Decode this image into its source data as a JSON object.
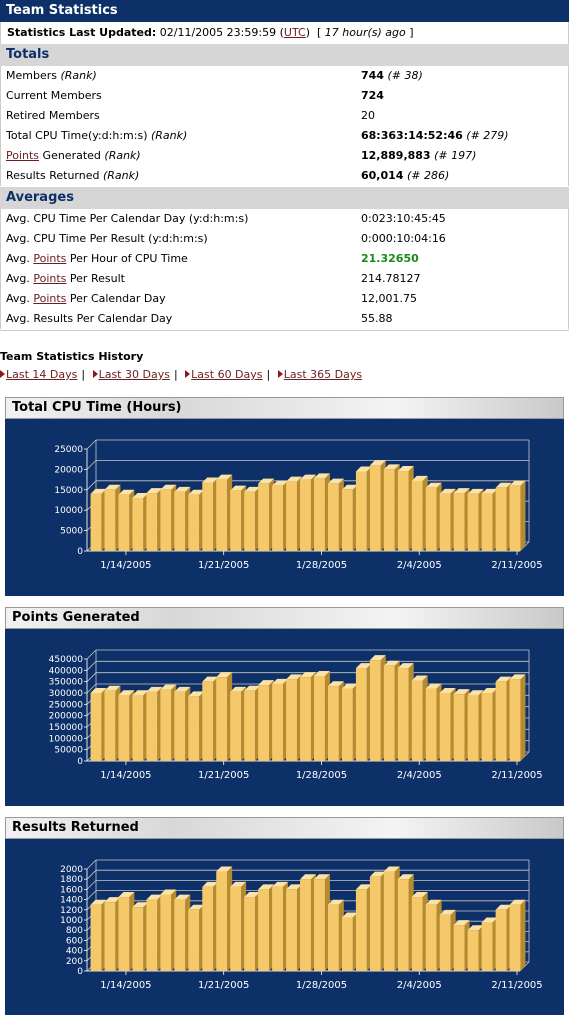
{
  "header": {
    "title": "Team Statistics"
  },
  "updated": {
    "label": "Statistics Last Updated:",
    "datetime": "02/11/2005 23:59:59",
    "tz_link": "UTC",
    "ago": "17 hour(s) ago"
  },
  "totals": {
    "heading": "Totals",
    "rows": [
      {
        "label": "Members",
        "rank_label": "(Rank)",
        "value": "744",
        "rank": "(# 38)"
      },
      {
        "label": "Current Members",
        "value": "724"
      },
      {
        "label": "Retired Members",
        "value": "20"
      },
      {
        "label": "Total CPU Time(y:d:h:m:s)",
        "rank_label": "(Rank)",
        "value": "68:363:14:52:46",
        "rank": "(# 279)"
      },
      {
        "link": "Points",
        "label": " Generated",
        "rank_label": "(Rank)",
        "value": "12,889,883",
        "rank": "(# 197)"
      },
      {
        "label": "Results Returned",
        "rank_label": "(Rank)",
        "value": "60,014",
        "rank": "(# 286)"
      }
    ]
  },
  "averages": {
    "heading": "Averages",
    "rows": [
      {
        "label": "Avg. CPU Time Per Calendar Day (y:d:h:m:s)",
        "value": "0:023:10:45:45"
      },
      {
        "label": "Avg. CPU Time Per Result (y:d:h:m:s)",
        "value": "0:000:10:04:16"
      },
      {
        "pre": "Avg. ",
        "link": "Points",
        "label": " Per Hour of CPU Time",
        "value": "21.32650"
      },
      {
        "pre": "Avg. ",
        "link": "Points",
        "label": " Per Result",
        "value": "214.78127"
      },
      {
        "pre": "Avg. ",
        "link": "Points",
        "label": " Per Calendar Day",
        "value": "12,001.75"
      },
      {
        "label": "Avg. Results Per Calendar Day",
        "value": "55.88"
      }
    ]
  },
  "history": {
    "title": "Team Statistics History",
    "links": [
      "Last 14 Days",
      "Last 30 Days",
      "Last 60 Days",
      "Last 365 Days"
    ]
  },
  "colors": {
    "navy": "#0d3068",
    "bar_face": "#f5c96a",
    "bar_top": "#fbe3a6",
    "bar_side": "#b88a2e",
    "link": "#6b1f1f",
    "green": "#1a8a1a"
  },
  "chart_data": [
    {
      "type": "bar",
      "title": "Total CPU Time (Hours)",
      "xlabels": [
        "1/14/2005",
        "1/21/2005",
        "1/28/2005",
        "2/4/2005",
        "2/11/2005"
      ],
      "yticks": [
        0,
        5000,
        10000,
        15000,
        20000,
        25000
      ],
      "ylim": [
        0,
        25000
      ],
      "values": [
        14000,
        15000,
        13800,
        13000,
        14200,
        15000,
        14500,
        13800,
        16800,
        17500,
        14800,
        14500,
        16500,
        16000,
        17000,
        17500,
        17800,
        16500,
        15000,
        19500,
        21000,
        20000,
        19600,
        17200,
        15500,
        14000,
        14200,
        14000,
        14000,
        15500,
        16000
      ]
    },
    {
      "type": "bar",
      "title": "Points Generated",
      "xlabels": [
        "1/14/2005",
        "1/21/2005",
        "1/28/2005",
        "2/4/2005",
        "2/11/2005"
      ],
      "yticks": [
        0,
        50000,
        100000,
        150000,
        200000,
        250000,
        300000,
        350000,
        400000,
        450000
      ],
      "ylim": [
        0,
        450000
      ],
      "values": [
        300000,
        310000,
        290000,
        290000,
        305000,
        315000,
        305000,
        285000,
        350000,
        370000,
        305000,
        310000,
        335000,
        340000,
        360000,
        370000,
        375000,
        330000,
        320000,
        410000,
        445000,
        420000,
        410000,
        355000,
        320000,
        300000,
        295000,
        290000,
        300000,
        350000,
        360000
      ]
    },
    {
      "type": "bar",
      "title": "Results Returned",
      "xlabels": [
        "1/14/2005",
        "1/21/2005",
        "1/28/2005",
        "2/4/2005",
        "2/11/2005"
      ],
      "yticks": [
        0,
        200,
        400,
        600,
        800,
        1000,
        1200,
        1400,
        1600,
        1800,
        2000
      ],
      "ylim": [
        0,
        2000
      ],
      "values": [
        1300,
        1350,
        1450,
        1250,
        1400,
        1500,
        1400,
        1200,
        1650,
        1950,
        1650,
        1450,
        1600,
        1650,
        1600,
        1800,
        1800,
        1300,
        1050,
        1600,
        1850,
        1950,
        1800,
        1450,
        1300,
        1100,
        900,
        800,
        950,
        1200,
        1300
      ]
    }
  ]
}
